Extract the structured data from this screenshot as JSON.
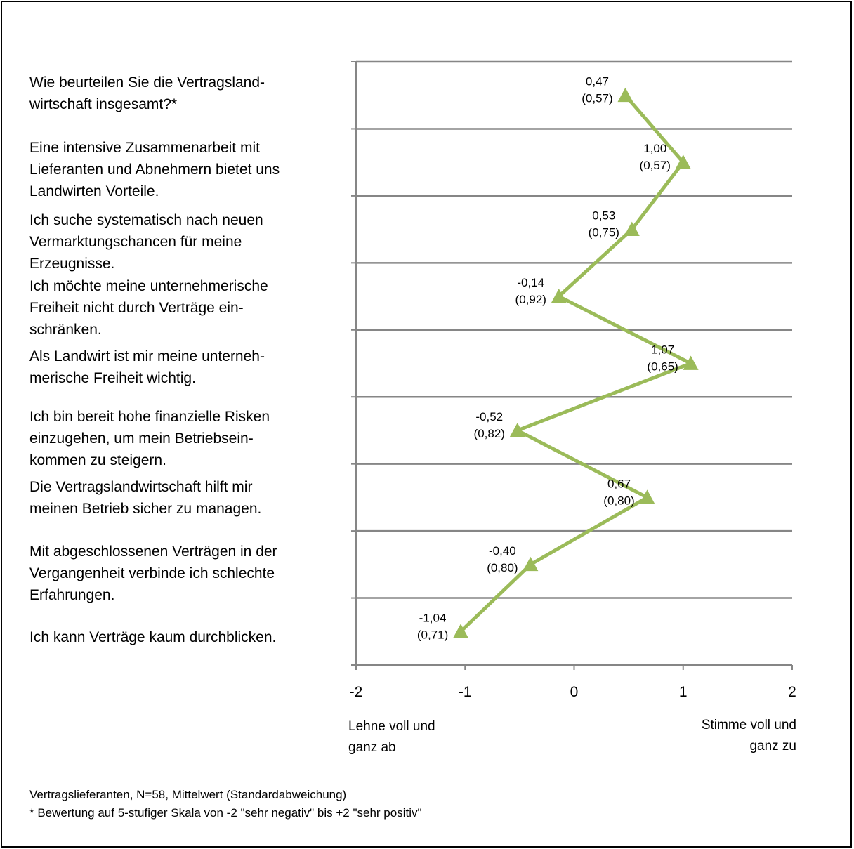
{
  "questions": [
    "Wie beurteilen Sie die Vertragsland-\nwirtschaft insgesamt?*",
    "Eine intensive Zusammenarbeit mit\nLieferanten und Abnehmern bietet uns\nLandwirten Vorteile.",
    "Ich suche systematisch nach neuen\nVermarktungschancen für meine\nErzeugnisse.",
    "Ich möchte meine unternehmerische\nFreiheit nicht durch Verträge ein-\nschränken.",
    "Als Landwirt ist mir meine unterneh-\nmerische Freiheit wichtig.",
    "Ich bin bereit hohe finanzielle Risken\neinzugehen, um mein Betriebsein-\nkommen zu steigern.",
    "Die Vertragslandwirtschaft hilft mir\nmeinen Betrieb sicher zu managen.",
    "Mit abgeschlossenen Verträgen in der\nVergangenheit verbinde ich schlechte\nErfahrungen.",
    "Ich kann Verträge kaum durchblicken."
  ],
  "chart_data": {
    "type": "line",
    "xlim": [
      -2,
      2
    ],
    "x_ticks": [
      -2,
      -1,
      0,
      1,
      2
    ],
    "x_tick_labels": [
      "-2",
      "-1",
      "0",
      "1",
      "2"
    ],
    "points": [
      {
        "mean": 0.47,
        "label": "0,47",
        "sd_label": "(0,57)"
      },
      {
        "mean": 1.0,
        "label": "1,00",
        "sd_label": "(0,57)"
      },
      {
        "mean": 0.53,
        "label": "0,53",
        "sd_label": "(0,75)"
      },
      {
        "mean": -0.14,
        "label": "-0,14",
        "sd_label": "(0,92)"
      },
      {
        "mean": 1.07,
        "label": "1,07",
        "sd_label": "(0,65)"
      },
      {
        "mean": -0.52,
        "label": "-0,52",
        "sd_label": "(0,82)"
      },
      {
        "mean": 0.67,
        "label": "0,67",
        "sd_label": "(0,80)"
      },
      {
        "mean": -0.4,
        "label": "-0,40",
        "sd_label": "(0,80)"
      },
      {
        "mean": -1.04,
        "label": "-1,04",
        "sd_label": "(0,71)"
      }
    ],
    "line_color": "#9bbb59",
    "grid_color": "#868686",
    "grid": true,
    "left_label": "Lehne voll und\nganz ab",
    "right_label": "Stimme voll und\nganz zu"
  },
  "notes": {
    "line1": "Vertragslieferanten, N=58, Mittelwert (Standardabweichung)",
    "line2": "* Bewertung auf 5-stufiger Skala von -2 \"sehr negativ\" bis +2 \"sehr positiv\""
  }
}
